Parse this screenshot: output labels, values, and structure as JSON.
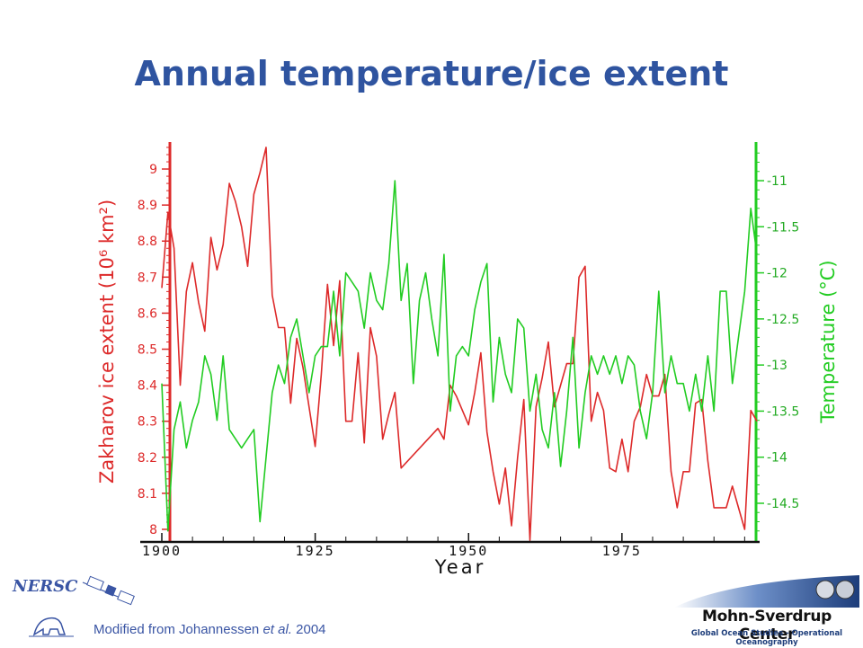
{
  "slide": {
    "title": "Annual temperature/ice extent",
    "citation_prefix": "Modified from Johannessen ",
    "citation_italic": "et al.",
    "citation_suffix": " 2004",
    "logo_left_text": "NERSC",
    "logo_right_name": "Mohn-Sverdrup Center",
    "logo_right_subtitle": "Global Ocean Studies - Operational Oceanography"
  },
  "chart_data": {
    "type": "line",
    "xlabel": "Year",
    "xlim": [
      1900,
      1997
    ],
    "x_ticks": [
      1900,
      1925,
      1950,
      1975
    ],
    "left_axis": {
      "label": "Zakharov ice extent (10⁶ km²)",
      "lim": [
        7.97,
        9.07
      ],
      "ticks": [
        "8",
        "8.1",
        "8.2",
        "8.3",
        "8.4",
        "8.5",
        "8.6",
        "8.7",
        "8.8",
        "8.9",
        "9"
      ],
      "color": "#dd2a2a"
    },
    "right_axis": {
      "label": "Temperature (°C)",
      "lim": [
        -14.9,
        -10.6
      ],
      "ticks": [
        "-11",
        "-11.5",
        "-12",
        "-12.5",
        "-13",
        "-13.5",
        "-14",
        "-14.5"
      ],
      "color": "#22cc22"
    },
    "grid": false,
    "series": [
      {
        "axis": "left",
        "color": "#dd2a2a",
        "x": [
          1900,
          1901,
          1902,
          1903,
          1904,
          1905,
          1906,
          1907,
          1908,
          1909,
          1910,
          1911,
          1912,
          1913,
          1914,
          1915,
          1916,
          1917,
          1918,
          1919,
          1920,
          1921,
          1922,
          1923,
          1924,
          1925,
          1926,
          1927,
          1928,
          1929,
          1930,
          1931,
          1932,
          1933,
          1934,
          1935,
          1936,
          1937,
          1938,
          1939,
          1945,
          1946,
          1947,
          1948,
          1949,
          1950,
          1951,
          1952,
          1953,
          1954,
          1955,
          1956,
          1957,
          1958,
          1959,
          1960,
          1961,
          1962,
          1963,
          1964,
          1965,
          1966,
          1967,
          1968,
          1969,
          1970,
          1971,
          1972,
          1973,
          1974,
          1975,
          1976,
          1977,
          1978,
          1979,
          1980,
          1981,
          1982,
          1983,
          1984,
          1985,
          1986,
          1987,
          1988,
          1989,
          1990,
          1991,
          1992,
          1993,
          1994,
          1995,
          1996,
          1997
        ],
        "values": [
          8.67,
          8.88,
          8.78,
          8.4,
          8.66,
          8.74,
          8.63,
          8.55,
          8.81,
          8.72,
          8.79,
          8.96,
          8.91,
          8.84,
          8.73,
          8.93,
          8.99,
          9.06,
          8.65,
          8.56,
          8.56,
          8.35,
          8.53,
          8.45,
          8.34,
          8.23,
          8.43,
          8.68,
          8.51,
          8.69,
          8.3,
          8.3,
          8.49,
          8.24,
          8.56,
          8.48,
          8.25,
          8.32,
          8.38,
          8.17,
          8.28,
          8.25,
          8.4,
          8.37,
          8.33,
          8.29,
          8.38,
          8.49,
          8.27,
          8.16,
          8.07,
          8.17,
          8.01,
          8.2,
          8.36,
          7.97,
          8.34,
          8.42,
          8.52,
          8.34,
          8.4,
          8.46,
          8.46,
          8.7,
          8.73,
          8.3,
          8.38,
          8.33,
          8.17,
          8.16,
          8.25,
          8.16,
          8.3,
          8.34,
          8.43,
          8.37,
          8.37,
          8.43,
          8.16,
          8.06,
          8.16,
          8.16,
          8.35,
          8.36,
          8.19,
          8.06,
          8.06,
          8.06,
          8.12,
          8.06,
          8.0,
          8.33,
          8.3
        ]
      },
      {
        "axis": "right",
        "color": "#22cc22",
        "x": [
          1900,
          1901,
          1902,
          1903,
          1904,
          1905,
          1906,
          1907,
          1908,
          1909,
          1910,
          1911,
          1912,
          1913,
          1914,
          1915,
          1916,
          1917,
          1918,
          1919,
          1920,
          1921,
          1922,
          1923,
          1924,
          1925,
          1926,
          1927,
          1928,
          1929,
          1930,
          1931,
          1932,
          1933,
          1934,
          1935,
          1936,
          1937,
          1938,
          1939,
          1940,
          1941,
          1942,
          1943,
          1944,
          1945,
          1946,
          1947,
          1948,
          1949,
          1950,
          1951,
          1952,
          1953,
          1954,
          1955,
          1956,
          1957,
          1958,
          1959,
          1960,
          1961,
          1962,
          1963,
          1964,
          1965,
          1966,
          1967,
          1968,
          1969,
          1970,
          1971,
          1972,
          1973,
          1974,
          1975,
          1976,
          1977,
          1978,
          1979,
          1980,
          1981,
          1982,
          1983,
          1984,
          1985,
          1986,
          1987,
          1988,
          1989,
          1990,
          1991,
          1992,
          1993,
          1994,
          1995,
          1996,
          1997
        ],
        "values": [
          -13.2,
          -14.8,
          -13.7,
          -13.4,
          -13.9,
          -13.6,
          -13.4,
          -12.9,
          -13.1,
          -13.6,
          -12.9,
          -13.7,
          -13.8,
          -13.9,
          -13.8,
          -13.7,
          -14.7,
          -14.0,
          -13.3,
          -13.0,
          -13.2,
          -12.7,
          -12.5,
          -12.9,
          -13.3,
          -12.9,
          -12.8,
          -12.8,
          -12.2,
          -12.9,
          -12.0,
          -12.1,
          -12.2,
          -12.6,
          -12.0,
          -12.3,
          -12.4,
          -11.9,
          -11.0,
          -12.3,
          -11.9,
          -13.2,
          -12.3,
          -12.0,
          -12.5,
          -12.9,
          -11.8,
          -13.5,
          -12.9,
          -12.8,
          -12.9,
          -12.4,
          -12.1,
          -11.9,
          -13.4,
          -12.7,
          -13.1,
          -13.3,
          -12.5,
          -12.6,
          -13.5,
          -13.1,
          -13.7,
          -13.9,
          -13.3,
          -14.1,
          -13.5,
          -12.7,
          -13.9,
          -13.3,
          -12.9,
          -13.1,
          -12.9,
          -13.1,
          -12.9,
          -13.2,
          -12.9,
          -13.0,
          -13.5,
          -13.8,
          -13.3,
          -12.2,
          -13.3,
          -12.9,
          -13.2,
          -13.2,
          -13.5,
          -13.1,
          -13.5,
          -12.9,
          -13.5,
          -12.2,
          -12.2,
          -13.2,
          -12.7,
          -12.2,
          -11.3,
          -11.8
        ]
      }
    ]
  }
}
